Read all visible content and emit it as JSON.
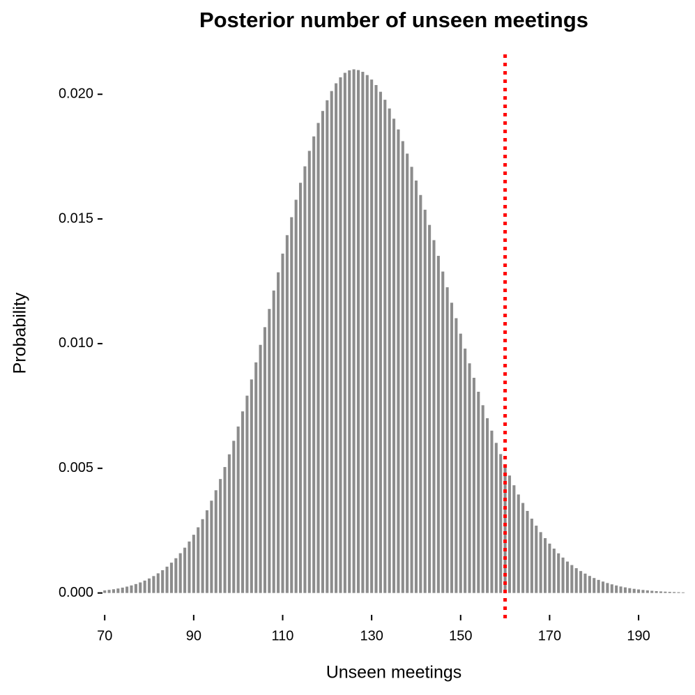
{
  "chart_data": {
    "type": "bar",
    "title": "Posterior number of unseen meetings",
    "x_label": "Unseen meetings",
    "y_label": "Probability",
    "x": [
      70,
      71,
      72,
      73,
      74,
      75,
      76,
      77,
      78,
      79,
      80,
      81,
      82,
      83,
      84,
      85,
      86,
      87,
      88,
      89,
      90,
      91,
      92,
      93,
      94,
      95,
      96,
      97,
      98,
      99,
      100,
      101,
      102,
      103,
      104,
      105,
      106,
      107,
      108,
      109,
      110,
      111,
      112,
      113,
      114,
      115,
      116,
      117,
      118,
      119,
      120,
      121,
      122,
      123,
      124,
      125,
      126,
      127,
      128,
      129,
      130,
      131,
      132,
      133,
      134,
      135,
      136,
      137,
      138,
      139,
      140,
      141,
      142,
      143,
      144,
      145,
      146,
      147,
      148,
      149,
      150,
      151,
      152,
      153,
      154,
      155,
      156,
      157,
      158,
      159,
      160,
      161,
      162,
      163,
      164,
      165,
      166,
      167,
      168,
      169,
      170,
      171,
      172,
      173,
      174,
      175,
      176,
      177,
      178,
      179,
      180,
      181,
      182,
      183,
      184,
      185,
      186,
      187,
      188,
      189,
      190,
      191,
      192,
      193,
      194,
      195,
      196,
      197,
      198,
      199,
      200
    ],
    "values": [
      0.000103,
      0.000125,
      0.00015,
      0.00018,
      0.000215,
      0.000256,
      0.000303,
      0.000359,
      0.000423,
      0.000497,
      0.000582,
      0.000679,
      0.000789,
      0.000914,
      0.001056,
      0.001216,
      0.001394,
      0.001595,
      0.001817,
      0.002064,
      0.002335,
      0.002634,
      0.002961,
      0.003316,
      0.003702,
      0.00412,
      0.00457,
      0.005051,
      0.005561,
      0.006103,
      0.006676,
      0.007283,
      0.007913,
      0.008564,
      0.009248,
      0.00995,
      0.01066,
      0.01139,
      0.01213,
      0.01286,
      0.01361,
      0.01435,
      0.01507,
      0.01577,
      0.01645,
      0.01711,
      0.01773,
      0.01831,
      0.01885,
      0.01933,
      0.01976,
      0.02013,
      0.02044,
      0.02068,
      0.02086,
      0.02096,
      0.021,
      0.02097,
      0.0209,
      0.02077,
      0.02059,
      0.02037,
      0.0201,
      0.01978,
      0.01943,
      0.01902,
      0.01859,
      0.01812,
      0.01762,
      0.01709,
      0.01654,
      0.01596,
      0.01537,
      0.01476,
      0.01415,
      0.01352,
      0.01289,
      0.01226,
      0.01164,
      0.01102,
      0.0104,
      0.0098,
      0.00921,
      0.00863,
      0.00807,
      0.00753,
      0.00701,
      0.00651,
      0.00602,
      0.00557,
      0.00513,
      0.00471,
      0.00432,
      0.00395,
      0.00361,
      0.00329,
      0.00298,
      0.0027,
      0.00244,
      0.0022,
      0.00198,
      0.00178,
      0.00159,
      0.00142,
      0.00126,
      0.00112,
      0.000995,
      0.00088,
      0.000777,
      0.000683,
      0.0006,
      0.000525,
      0.000458,
      0.000399,
      0.000347,
      0.000301,
      0.00026,
      0.000225,
      0.000193,
      0.000166,
      0.000142,
      0.000122,
      0.000104,
      8.8e-05,
      7.5e-05,
      6.3e-05,
      5.3e-05,
      4.5e-05,
      3.8e-05,
      3.2e-05,
      2.6e-05
    ],
    "color": "#8c8c8c",
    "vline": 160,
    "vline_color": "#ff0000",
    "xlim": [
      68.4,
      200.8
    ],
    "xticks": [
      70,
      90,
      110,
      130,
      150,
      170,
      190
    ],
    "ylim": [
      -0.0011,
      0.0216
    ],
    "yticks": [
      {
        "value": 0,
        "label": "0.000"
      },
      {
        "value": 0.005,
        "label": "0.005"
      },
      {
        "value": 0.01,
        "label": "0.010"
      },
      {
        "value": 0.015,
        "label": "0.015"
      },
      {
        "value": 0.02,
        "label": "0.020"
      }
    ],
    "grid": false
  }
}
